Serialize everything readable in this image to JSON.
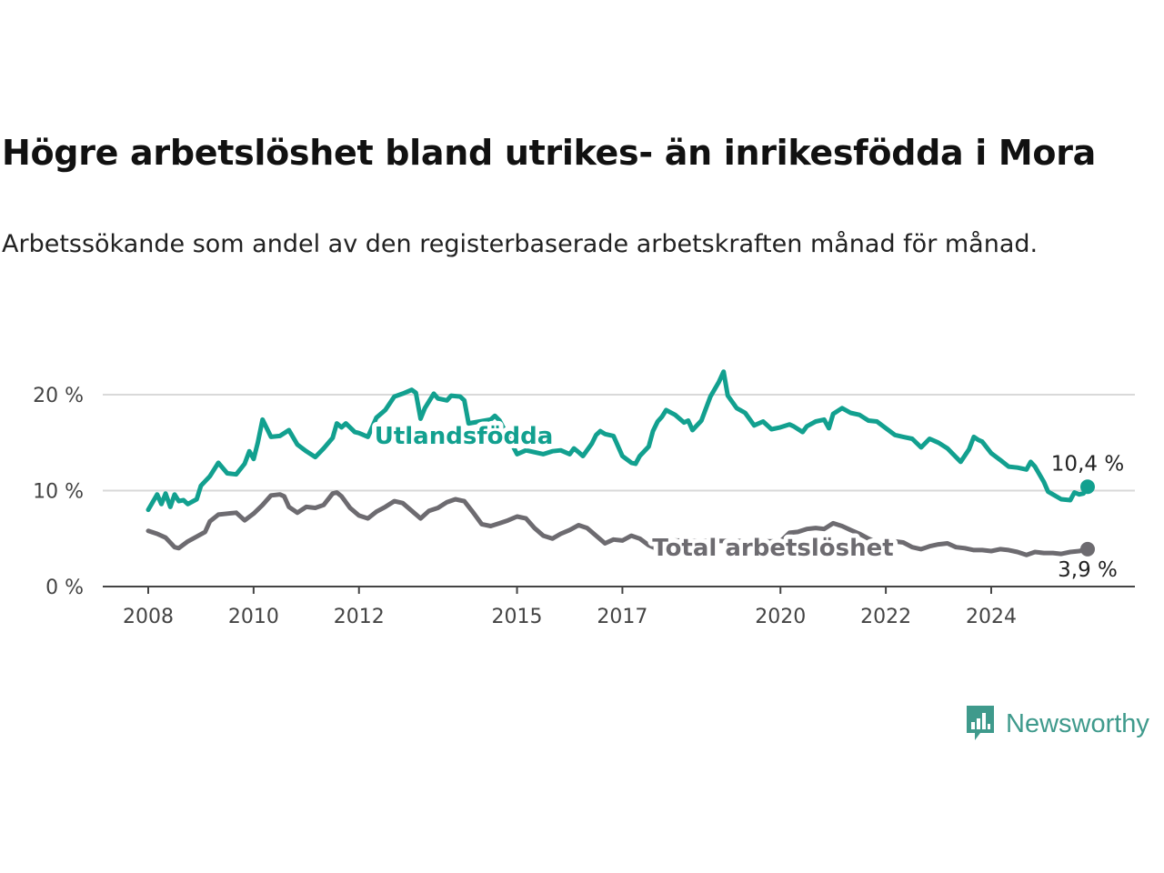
{
  "title": "Högre arbetslöshet bland utrikes- än inrikesfödda i Mora",
  "subtitle": "Arbetssökande som andel av den registerbaserade arbetskraften månad för månad.",
  "brand": "Newsworthy",
  "colors": {
    "foreign": "#12a08f",
    "total": "#6d6b70",
    "grid": "#d9d9d9",
    "axis": "#444444",
    "brand": "#3f9a8c"
  },
  "chart_data": {
    "type": "line",
    "title": "Högre arbetslöshet bland utrikes- än inrikesfödda i Mora",
    "xlabel": "",
    "ylabel": "",
    "ylim": [
      0,
      22
    ],
    "grid": true,
    "y_ticks": [
      {
        "value": 0,
        "label": "0 %"
      },
      {
        "value": 10,
        "label": "10 %"
      },
      {
        "value": 20,
        "label": "20 %"
      }
    ],
    "x_ticks": [
      {
        "value": 2008,
        "label": "2008"
      },
      {
        "value": 2010,
        "label": "2010"
      },
      {
        "value": 2012,
        "label": "2012"
      },
      {
        "value": 2015,
        "label": "2015"
      },
      {
        "value": 2017,
        "label": "2017"
      },
      {
        "value": 2020,
        "label": "2020"
      },
      {
        "value": 2022,
        "label": "2022"
      },
      {
        "value": 2024,
        "label": "2024"
      }
    ],
    "series": [
      {
        "name": "Utlandsfödda",
        "color_key": "foreign",
        "end_label": "10,4 %",
        "points": [
          [
            2008.0,
            8.0
          ],
          [
            2008.17,
            9.6
          ],
          [
            2008.25,
            8.6
          ],
          [
            2008.33,
            9.7
          ],
          [
            2008.42,
            8.3
          ],
          [
            2008.5,
            9.6
          ],
          [
            2008.58,
            8.9
          ],
          [
            2008.67,
            9.0
          ],
          [
            2008.75,
            8.6
          ],
          [
            2008.92,
            9.1
          ],
          [
            2009.0,
            10.5
          ],
          [
            2009.17,
            11.5
          ],
          [
            2009.33,
            12.9
          ],
          [
            2009.5,
            11.8
          ],
          [
            2009.67,
            11.7
          ],
          [
            2009.83,
            12.8
          ],
          [
            2009.92,
            14.1
          ],
          [
            2010.0,
            13.3
          ],
          [
            2010.08,
            15.0
          ],
          [
            2010.17,
            17.4
          ],
          [
            2010.33,
            15.6
          ],
          [
            2010.5,
            15.7
          ],
          [
            2010.67,
            16.3
          ],
          [
            2010.83,
            14.8
          ],
          [
            2011.0,
            14.1
          ],
          [
            2011.17,
            13.5
          ],
          [
            2011.33,
            14.4
          ],
          [
            2011.5,
            15.5
          ],
          [
            2011.58,
            17.0
          ],
          [
            2011.67,
            16.6
          ],
          [
            2011.75,
            17.0
          ],
          [
            2011.92,
            16.1
          ],
          [
            2012.0,
            16.0
          ],
          [
            2012.17,
            15.6
          ],
          [
            2012.33,
            17.6
          ],
          [
            2012.5,
            18.4
          ],
          [
            2012.67,
            19.8
          ],
          [
            2012.83,
            20.1
          ],
          [
            2013.0,
            20.5
          ],
          [
            2013.08,
            20.2
          ],
          [
            2013.17,
            17.5
          ],
          [
            2013.25,
            18.6
          ],
          [
            2013.42,
            20.1
          ],
          [
            2013.5,
            19.6
          ],
          [
            2013.67,
            19.4
          ],
          [
            2013.75,
            19.9
          ],
          [
            2013.92,
            19.8
          ],
          [
            2014.0,
            19.4
          ],
          [
            2014.08,
            17.0
          ],
          [
            2014.5,
            17.4
          ],
          [
            2014.58,
            17.8
          ],
          [
            2014.67,
            17.3
          ],
          [
            2015.0,
            13.8
          ],
          [
            2015.17,
            14.2
          ],
          [
            2015.5,
            13.8
          ],
          [
            2015.67,
            14.1
          ],
          [
            2015.83,
            14.2
          ],
          [
            2016.0,
            13.8
          ],
          [
            2016.08,
            14.4
          ],
          [
            2016.17,
            14.0
          ],
          [
            2016.25,
            13.6
          ],
          [
            2016.42,
            14.9
          ],
          [
            2016.5,
            15.8
          ],
          [
            2016.58,
            16.2
          ],
          [
            2016.67,
            15.9
          ],
          [
            2016.83,
            15.7
          ],
          [
            2017.0,
            13.6
          ],
          [
            2017.17,
            12.9
          ],
          [
            2017.25,
            12.8
          ],
          [
            2017.33,
            13.6
          ],
          [
            2017.5,
            14.6
          ],
          [
            2017.58,
            16.2
          ],
          [
            2017.67,
            17.2
          ],
          [
            2017.75,
            17.7
          ],
          [
            2017.83,
            18.4
          ],
          [
            2018.0,
            17.9
          ],
          [
            2018.17,
            17.1
          ],
          [
            2018.25,
            17.3
          ],
          [
            2018.33,
            16.3
          ],
          [
            2018.5,
            17.3
          ],
          [
            2018.67,
            19.8
          ],
          [
            2018.83,
            21.3
          ],
          [
            2018.92,
            22.4
          ],
          [
            2019.0,
            19.9
          ],
          [
            2019.17,
            18.6
          ],
          [
            2019.33,
            18.1
          ],
          [
            2019.5,
            16.8
          ],
          [
            2019.67,
            17.2
          ],
          [
            2019.83,
            16.4
          ],
          [
            2020.0,
            16.6
          ],
          [
            2020.17,
            16.9
          ],
          [
            2020.25,
            16.7
          ],
          [
            2020.42,
            16.1
          ],
          [
            2020.5,
            16.7
          ],
          [
            2020.67,
            17.2
          ],
          [
            2020.83,
            17.4
          ],
          [
            2020.92,
            16.5
          ],
          [
            2021.0,
            18.0
          ],
          [
            2021.17,
            18.6
          ],
          [
            2021.33,
            18.1
          ],
          [
            2021.5,
            17.9
          ],
          [
            2021.67,
            17.3
          ],
          [
            2021.83,
            17.2
          ],
          [
            2022.0,
            16.5
          ],
          [
            2022.17,
            15.8
          ],
          [
            2022.33,
            15.6
          ],
          [
            2022.5,
            15.4
          ],
          [
            2022.67,
            14.5
          ],
          [
            2022.83,
            15.4
          ],
          [
            2023.0,
            15.0
          ],
          [
            2023.17,
            14.4
          ],
          [
            2023.33,
            13.5
          ],
          [
            2023.42,
            13.0
          ],
          [
            2023.58,
            14.3
          ],
          [
            2023.67,
            15.6
          ],
          [
            2023.75,
            15.3
          ],
          [
            2023.83,
            15.1
          ],
          [
            2024.0,
            13.9
          ],
          [
            2024.17,
            13.2
          ],
          [
            2024.33,
            12.5
          ],
          [
            2024.5,
            12.4
          ],
          [
            2024.67,
            12.2
          ],
          [
            2024.75,
            13.0
          ],
          [
            2024.83,
            12.5
          ],
          [
            2025.0,
            10.9
          ],
          [
            2025.08,
            9.9
          ],
          [
            2025.17,
            9.6
          ],
          [
            2025.33,
            9.1
          ],
          [
            2025.5,
            9.0
          ],
          [
            2025.58,
            9.8
          ],
          [
            2025.67,
            9.6
          ],
          [
            2025.75,
            9.7
          ],
          [
            2025.83,
            10.4
          ]
        ]
      },
      {
        "name": "Total arbetslöshet",
        "color_key": "total",
        "end_label": "3,9 %",
        "points": [
          [
            2008.0,
            5.8
          ],
          [
            2008.17,
            5.5
          ],
          [
            2008.33,
            5.1
          ],
          [
            2008.5,
            4.1
          ],
          [
            2008.58,
            4.0
          ],
          [
            2008.75,
            4.7
          ],
          [
            2008.92,
            5.2
          ],
          [
            2009.08,
            5.7
          ],
          [
            2009.17,
            6.8
          ],
          [
            2009.33,
            7.5
          ],
          [
            2009.5,
            7.6
          ],
          [
            2009.67,
            7.7
          ],
          [
            2009.83,
            6.9
          ],
          [
            2010.0,
            7.6
          ],
          [
            2010.17,
            8.5
          ],
          [
            2010.33,
            9.5
          ],
          [
            2010.5,
            9.6
          ],
          [
            2010.58,
            9.4
          ],
          [
            2010.67,
            8.3
          ],
          [
            2010.83,
            7.7
          ],
          [
            2011.0,
            8.3
          ],
          [
            2011.17,
            8.2
          ],
          [
            2011.33,
            8.5
          ],
          [
            2011.5,
            9.7
          ],
          [
            2011.58,
            9.8
          ],
          [
            2011.67,
            9.4
          ],
          [
            2011.83,
            8.2
          ],
          [
            2012.0,
            7.4
          ],
          [
            2012.17,
            7.1
          ],
          [
            2012.33,
            7.8
          ],
          [
            2012.5,
            8.3
          ],
          [
            2012.67,
            8.9
          ],
          [
            2012.83,
            8.7
          ],
          [
            2013.0,
            7.9
          ],
          [
            2013.17,
            7.1
          ],
          [
            2013.33,
            7.9
          ],
          [
            2013.5,
            8.2
          ],
          [
            2013.67,
            8.8
          ],
          [
            2013.83,
            9.1
          ],
          [
            2014.0,
            8.9
          ],
          [
            2014.17,
            7.7
          ],
          [
            2014.33,
            6.5
          ],
          [
            2014.5,
            6.3
          ],
          [
            2014.67,
            6.6
          ],
          [
            2014.83,
            6.9
          ],
          [
            2015.0,
            7.3
          ],
          [
            2015.17,
            7.1
          ],
          [
            2015.33,
            6.1
          ],
          [
            2015.5,
            5.3
          ],
          [
            2015.67,
            5.0
          ],
          [
            2015.83,
            5.5
          ],
          [
            2016.0,
            5.9
          ],
          [
            2016.17,
            6.4
          ],
          [
            2016.33,
            6.1
          ],
          [
            2016.5,
            5.3
          ],
          [
            2016.67,
            4.5
          ],
          [
            2016.83,
            4.9
          ],
          [
            2017.0,
            4.8
          ],
          [
            2017.17,
            5.3
          ],
          [
            2017.33,
            5.0
          ],
          [
            2017.5,
            4.3
          ],
          [
            2017.67,
            3.9
          ],
          [
            2017.83,
            4.1
          ],
          [
            2018.0,
            4.8
          ],
          [
            2020.0,
            4.7
          ],
          [
            2020.17,
            5.6
          ],
          [
            2020.33,
            5.7
          ],
          [
            2020.5,
            6.0
          ],
          [
            2020.67,
            6.1
          ],
          [
            2020.83,
            6.0
          ],
          [
            2021.0,
            6.6
          ],
          [
            2021.17,
            6.3
          ],
          [
            2021.33,
            5.9
          ],
          [
            2021.5,
            5.5
          ],
          [
            2021.67,
            5.0
          ],
          [
            2021.83,
            4.6
          ],
          [
            2022.0,
            4.5
          ],
          [
            2022.17,
            4.7
          ],
          [
            2022.33,
            4.6
          ],
          [
            2022.5,
            4.1
          ],
          [
            2022.67,
            3.9
          ],
          [
            2022.83,
            4.2
          ],
          [
            2023.0,
            4.4
          ],
          [
            2023.17,
            4.5
          ],
          [
            2023.33,
            4.1
          ],
          [
            2023.5,
            4.0
          ],
          [
            2023.67,
            3.8
          ],
          [
            2023.83,
            3.8
          ],
          [
            2024.0,
            3.7
          ],
          [
            2024.17,
            3.9
          ],
          [
            2024.33,
            3.8
          ],
          [
            2024.5,
            3.6
          ],
          [
            2024.67,
            3.3
          ],
          [
            2024.83,
            3.6
          ],
          [
            2025.0,
            3.5
          ],
          [
            2025.17,
            3.5
          ],
          [
            2025.33,
            3.4
          ],
          [
            2025.5,
            3.6
          ],
          [
            2025.67,
            3.7
          ],
          [
            2025.83,
            3.9
          ]
        ]
      }
    ]
  }
}
